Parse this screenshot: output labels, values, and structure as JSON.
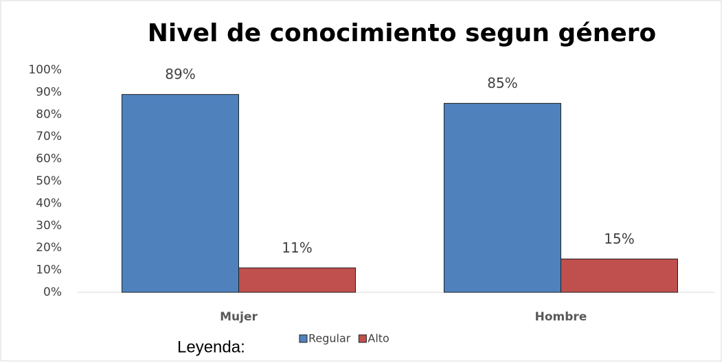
{
  "chart_data": {
    "type": "bar",
    "title": "Nivel de conocimiento segun  género",
    "categories": [
      "Mujer",
      "Hombre"
    ],
    "series": [
      {
        "name": "Regular",
        "color": "#4f81bd",
        "values": [
          89,
          85
        ],
        "value_labels": [
          "89%",
          "85%"
        ]
      },
      {
        "name": "Alto",
        "color": "#c0504d",
        "values": [
          11,
          15
        ],
        "value_labels": [
          "11%",
          "15%"
        ]
      }
    ],
    "ylim": [
      0,
      100
    ],
    "yticks": [
      {
        "value": 0,
        "label": "0%"
      },
      {
        "value": 10,
        "label": "10%"
      },
      {
        "value": 20,
        "label": "20%"
      },
      {
        "value": 30,
        "label": "30%"
      },
      {
        "value": 40,
        "label": "40%"
      },
      {
        "value": 50,
        "label": "50%"
      },
      {
        "value": 60,
        "label": "60%"
      },
      {
        "value": 70,
        "label": "70%"
      },
      {
        "value": 80,
        "label": "80%"
      },
      {
        "value": 90,
        "label": "90%"
      },
      {
        "value": 100,
        "label": "100%"
      }
    ],
    "legend_title": "Leyenda:",
    "legend": "bottom"
  }
}
